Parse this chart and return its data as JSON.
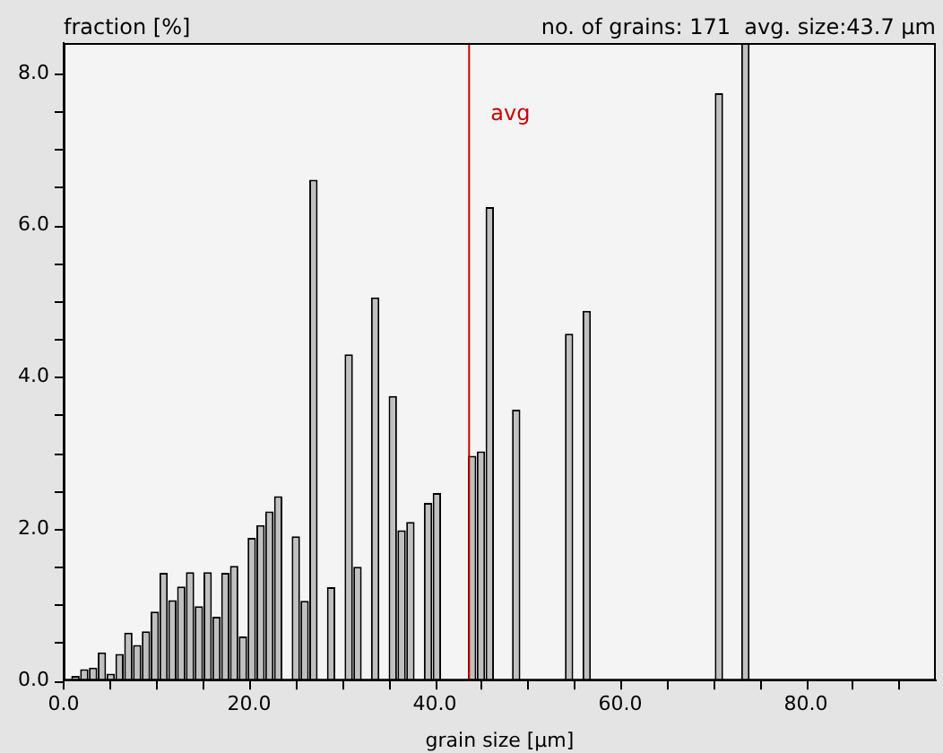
{
  "chart_data": {
    "type": "histogram",
    "xlabel": "grain size [µm]",
    "ylabel": "fraction [%]",
    "annotations": [
      "no. of grains: 171  avg. size:43.7 µm"
    ],
    "bins": [
      0.8,
      1.75,
      2.7,
      3.65,
      4.6,
      5.55,
      6.5,
      7.45,
      8.4,
      9.35,
      10.3,
      11.25,
      12.2,
      13.15,
      14.1,
      15.05,
      16,
      16.95,
      17.9,
      18.85,
      19.8,
      20.75,
      21.7,
      22.65,
      23.6,
      24.55,
      25.5,
      26.45,
      27.4,
      28.35,
      29.3,
      30.25,
      31.2,
      32.15,
      33.1,
      34.05,
      35,
      35.95,
      36.9,
      37.85,
      38.8,
      39.75,
      40.7,
      41.65,
      42.6,
      43.55,
      44.5,
      45.45,
      46.4,
      47.35,
      48.3,
      49.25,
      50.2,
      51.15,
      52.1,
      53.05,
      54,
      54.95,
      55.9,
      56.85,
      57.8,
      58.75,
      59.7,
      60.65,
      61.6,
      62.55,
      63.5,
      64.45,
      65.4,
      66.35,
      67.3,
      68.25,
      69.2,
      70.15,
      71.1,
      72.05,
      73,
      73.95
    ],
    "values": [
      0.06,
      0.15,
      0.17,
      0.37,
      0.09,
      0.35,
      0.63,
      0.47,
      0.65,
      0.91,
      1.42,
      1.06,
      1.24,
      1.43,
      0.98,
      1.43,
      0.84,
      1.42,
      1.51,
      0.58,
      1.88,
      2.05,
      2.23,
      2.43,
      0,
      1.9,
      1.05,
      6.6,
      0,
      1.23,
      0,
      4.3,
      1.5,
      0,
      5.05,
      0,
      3.75,
      1.98,
      2.09,
      0,
      2.34,
      2.47,
      0,
      0,
      0,
      2.96,
      3.02,
      6.24,
      0,
      0,
      3.57,
      0,
      0,
      0,
      0,
      0,
      4.57,
      0,
      4.87,
      0,
      0,
      0,
      0,
      0,
      0,
      0,
      0,
      0,
      0,
      0,
      0,
      0,
      0,
      7.74,
      0,
      0,
      8.4
    ],
    "color": "#c0c0c0",
    "xlim": [
      0,
      94
    ],
    "xticks": [
      {
        "value": 0,
        "label": "0.0"
      },
      {
        "value": 5,
        "label": null
      },
      {
        "value": 10,
        "label": null
      },
      {
        "value": 15,
        "label": null
      },
      {
        "value": 20,
        "label": "20.0"
      },
      {
        "value": 25,
        "label": null
      },
      {
        "value": 30,
        "label": null
      },
      {
        "value": 35,
        "label": null
      },
      {
        "value": 40,
        "label": "40.0"
      },
      {
        "value": 45,
        "label": null
      },
      {
        "value": 50,
        "label": null
      },
      {
        "value": 55,
        "label": null
      },
      {
        "value": 60,
        "label": "60.0"
      },
      {
        "value": 65,
        "label": null
      },
      {
        "value": 70,
        "label": null
      },
      {
        "value": 75,
        "label": null
      },
      {
        "value": 80,
        "label": "80.0"
      },
      {
        "value": 85,
        "label": null
      },
      {
        "value": 90,
        "label": null
      }
    ],
    "ylim": [
      0,
      8.4
    ],
    "yticks": [
      {
        "value": 0,
        "label": "0.0"
      },
      {
        "value": 0.5,
        "label": null
      },
      {
        "value": 1,
        "label": null
      },
      {
        "value": 1.5,
        "label": null
      },
      {
        "value": 2,
        "label": "2.0"
      },
      {
        "value": 2.5,
        "label": null
      },
      {
        "value": 3,
        "label": null
      },
      {
        "value": 3.5,
        "label": null
      },
      {
        "value": 4,
        "label": "4.0"
      },
      {
        "value": 4.5,
        "label": null
      },
      {
        "value": 5,
        "label": null
      },
      {
        "value": 5.5,
        "label": null
      },
      {
        "value": 6,
        "label": "6.0"
      },
      {
        "value": 6.5,
        "label": null
      },
      {
        "value": 7,
        "label": null
      },
      {
        "value": 7.5,
        "label": null
      },
      {
        "value": 8,
        "label": "8.0"
      }
    ],
    "ref_lines": [
      {
        "axis": "x",
        "value": 43.7,
        "label": "avg",
        "color": "#cc0000"
      }
    ],
    "grid": false,
    "legend": false
  }
}
